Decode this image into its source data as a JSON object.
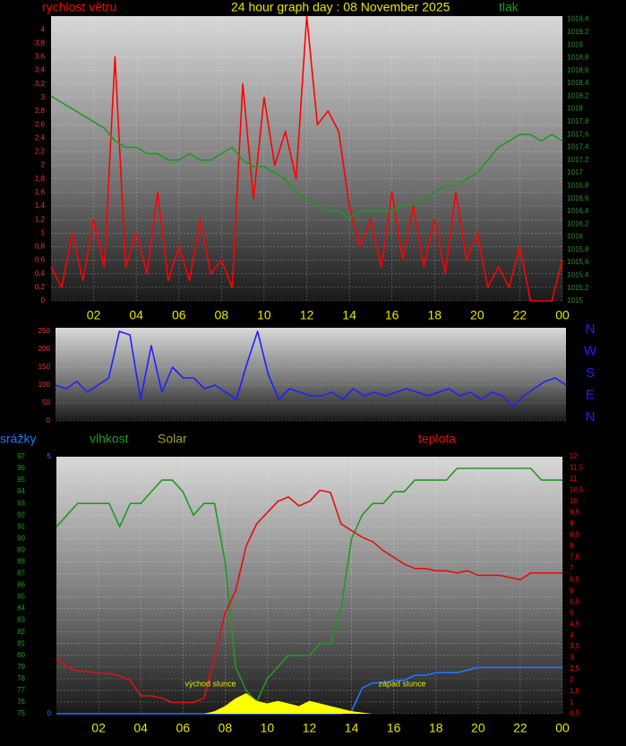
{
  "chart_data": [
    {
      "type": "line",
      "title": "24 hour graph day : 08 November 2025",
      "x": [
        0,
        0.5,
        1,
        1.5,
        2,
        2.5,
        3,
        3.5,
        4,
        4.5,
        5,
        5.5,
        6,
        6.5,
        7,
        7.5,
        8,
        8.5,
        9,
        9.5,
        10,
        10.5,
        11,
        11.5,
        12,
        12.5,
        13,
        13.5,
        14,
        14.5,
        15,
        15.5,
        16,
        16.5,
        17,
        17.5,
        18,
        18.5,
        19,
        19.5,
        20,
        20.5,
        21,
        21.5,
        22,
        22.5,
        23,
        23.5,
        24
      ],
      "xlim": [
        0,
        24
      ],
      "xticks": [
        {
          "value": 2,
          "label": "02"
        },
        {
          "value": 4,
          "label": "04"
        },
        {
          "value": 6,
          "label": "06"
        },
        {
          "value": 8,
          "label": "08"
        },
        10,
        12,
        14,
        16,
        18,
        20,
        22,
        {
          "value": 24,
          "label": "00"
        }
      ],
      "ylim": [
        0,
        4.2
      ],
      "yticks": [
        0,
        {
          "value": 0.2,
          "label": "0,2"
        },
        {
          "value": 0.4,
          "label": "0,4"
        },
        {
          "value": 0.6,
          "label": "0,6"
        },
        {
          "value": 0.8,
          "label": "0,8"
        },
        1,
        {
          "value": 1.2,
          "label": "1,2"
        },
        {
          "value": 1.4,
          "label": "1,4"
        },
        {
          "value": 1.6,
          "label": "1,6"
        },
        {
          "value": 1.8,
          "label": "1,8"
        },
        2,
        {
          "value": 2.2,
          "label": "2,2"
        },
        {
          "value": 2.4,
          "label": "2,4"
        },
        {
          "value": 2.6,
          "label": "2,6"
        },
        {
          "value": 2.8,
          "label": "2,8"
        },
        3,
        {
          "value": 3.2,
          "label": "3,2"
        },
        {
          "value": 3.4,
          "label": "3,4"
        },
        {
          "value": 3.6,
          "label": "3,6"
        },
        {
          "value": 3.8,
          "label": "3,8"
        },
        4
      ],
      "y2lim": [
        1015,
        1019.45
      ],
      "y2ticks": [
        1015,
        {
          "value": 1015.2,
          "label": "1015,2"
        },
        {
          "value": 1015.4,
          "label": "1015,4"
        },
        {
          "value": 1015.6,
          "label": "1015,6"
        },
        {
          "value": 1015.8,
          "label": "1015,8"
        },
        1016,
        {
          "value": 1016.2,
          "label": "1016,2"
        },
        {
          "value": 1016.4,
          "label": "1016,4"
        },
        {
          "value": 1016.6,
          "label": "1016,6"
        },
        {
          "value": 1016.8,
          "label": "1016,8"
        },
        1017,
        {
          "value": 1017.2,
          "label": "1017,2"
        },
        {
          "value": 1017.4,
          "label": "1017,4"
        },
        {
          "value": 1017.6,
          "label": "1017,6"
        },
        {
          "value": 1017.8,
          "label": "1017,8"
        },
        1018,
        {
          "value": 1018.2,
          "label": "1018,2"
        },
        {
          "value": 1018.4,
          "label": "1018,4"
        },
        {
          "value": 1018.6,
          "label": "1018,6"
        },
        {
          "value": 1018.8,
          "label": "1018,8"
        },
        1019,
        {
          "value": 1019.2,
          "label": "1019,2"
        },
        {
          "value": 1019.4,
          "label": "1019,4"
        }
      ],
      "grid": true,
      "series": [
        {
          "name": "rychlost větru",
          "color": "#ff0000",
          "values": [
            0.5,
            0.2,
            1,
            0.3,
            1.2,
            0.5,
            3.6,
            0.5,
            1,
            0.4,
            1.6,
            0.3,
            0.8,
            0.3,
            1.2,
            0.4,
            0.6,
            0.2,
            3.2,
            1.5,
            3,
            2,
            2.5,
            1.8,
            4.2,
            2.6,
            2.8,
            2.5,
            1.4,
            0.8,
            1.2,
            0.5,
            1.6,
            0.6,
            1.4,
            0.5,
            1.2,
            0.4,
            1.6,
            0.6,
            1,
            0.2,
            0.5,
            0.2,
            0.8,
            0,
            0,
            0,
            0.6
          ]
        },
        {
          "name": "tlak",
          "color": "#1f9a1f",
          "axis": "y2",
          "values": [
            1018.2,
            1018.1,
            1018.0,
            1017.9,
            1017.8,
            1017.7,
            1017.5,
            1017.4,
            1017.4,
            1017.3,
            1017.3,
            1017.2,
            1017.2,
            1017.3,
            1017.2,
            1017.2,
            1017.3,
            1017.4,
            1017.2,
            1017.1,
            1017.1,
            1017.0,
            1016.9,
            1016.7,
            1016.6,
            1016.5,
            1016.4,
            1016.4,
            1016.3,
            1016.4,
            1016.4,
            1016.4,
            1016.4,
            1016.5,
            1016.5,
            1016.6,
            1016.7,
            1016.8,
            1016.8,
            1016.9,
            1017.0,
            1017.2,
            1017.4,
            1017.5,
            1017.6,
            1017.6,
            1017.5,
            1017.6,
            1017.5
          ]
        }
      ]
    },
    {
      "type": "line",
      "x": [
        0,
        0.5,
        1,
        1.5,
        2,
        2.5,
        3,
        3.5,
        4,
        4.5,
        5,
        5.5,
        6,
        6.5,
        7,
        7.5,
        8,
        8.5,
        9,
        9.5,
        10,
        10.5,
        11,
        11.5,
        12,
        12.5,
        13,
        13.5,
        14,
        14.5,
        15,
        15.5,
        16,
        16.5,
        17,
        17.5,
        18,
        18.5,
        19,
        19.5,
        20,
        20.5,
        21,
        21.5,
        22,
        22.5,
        23,
        23.5,
        24
      ],
      "xlim": [
        0,
        24
      ],
      "ylim": [
        0,
        260
      ],
      "yticks": [
        0,
        50,
        100,
        150,
        200,
        250
      ],
      "direction_labels": [
        "N",
        "W",
        "S",
        "E",
        "N"
      ],
      "series": [
        {
          "color": "#2020ff",
          "values": [
            100,
            90,
            110,
            80,
            100,
            120,
            250,
            240,
            60,
            210,
            80,
            150,
            120,
            120,
            90,
            100,
            80,
            60,
            160,
            250,
            130,
            60,
            90,
            80,
            70,
            70,
            80,
            60,
            90,
            70,
            80,
            70,
            80,
            90,
            80,
            70,
            80,
            90,
            70,
            80,
            60,
            80,
            70,
            40,
            70,
            90,
            110,
            120,
            100
          ]
        }
      ]
    },
    {
      "type": "line",
      "x": [
        0,
        0.5,
        1,
        1.5,
        2,
        2.5,
        3,
        3.5,
        4,
        4.5,
        5,
        5.5,
        6,
        6.5,
        7,
        7.5,
        8,
        8.5,
        9,
        9.5,
        10,
        10.5,
        11,
        11.5,
        12,
        12.5,
        13,
        13.5,
        14,
        14.5,
        15,
        15.5,
        16,
        16.5,
        17,
        17.5,
        18,
        18.5,
        19,
        19.5,
        20,
        20.5,
        21,
        21.5,
        22,
        22.5,
        23,
        23.5,
        24
      ],
      "xlim": [
        0,
        24
      ],
      "xticks": [
        {
          "value": 2,
          "label": "02"
        },
        {
          "value": 4,
          "label": "04"
        },
        {
          "value": 6,
          "label": "06"
        },
        {
          "value": 8,
          "label": "08"
        },
        10,
        12,
        14,
        16,
        18,
        20,
        22,
        {
          "value": 24,
          "label": "00"
        }
      ],
      "ylim": [
        75,
        97
      ],
      "yticks": [
        75,
        76,
        77,
        78,
        79,
        80,
        81,
        82,
        83,
        84,
        85,
        86,
        87,
        88,
        89,
        90,
        91,
        92,
        93,
        94,
        95,
        96,
        97
      ],
      "y2lim": [
        0,
        5
      ],
      "y2ticks": [
        0,
        5
      ],
      "y3lim": [
        0.5,
        12
      ],
      "y3ticks": [
        {
          "value": 0.5,
          "label": "0,5"
        },
        1,
        {
          "value": 1.5,
          "label": "1,5"
        },
        2,
        {
          "value": 2.5,
          "label": "2,5"
        },
        3,
        {
          "value": 3.5,
          "label": "3,5"
        },
        4,
        {
          "value": 4.5,
          "label": "4,5"
        },
        5,
        {
          "value": 5.5,
          "label": "5,5"
        },
        6,
        {
          "value": 6.5,
          "label": "6,5"
        },
        7,
        {
          "value": 7.5,
          "label": "7,5"
        },
        8,
        {
          "value": 8.5,
          "label": "8,5"
        },
        9,
        {
          "value": 9.5,
          "label": "9,5"
        },
        10,
        {
          "value": 10.5,
          "label": "10,5"
        },
        11,
        {
          "value": 11.5,
          "label": "11,5"
        },
        12
      ],
      "y4lim": [
        0,
        1000
      ],
      "grid": true,
      "annotations": [
        "východ slunce",
        "západ slunce"
      ],
      "series": [
        {
          "name": "srážky",
          "color": "#1e78ff",
          "axis": "y2",
          "values": [
            0,
            0,
            0,
            0,
            0,
            0,
            0,
            0,
            0,
            0,
            0,
            0,
            0,
            0,
            0,
            0,
            0,
            0,
            0,
            0,
            0,
            0,
            0,
            0,
            0,
            0,
            0,
            0,
            0.05,
            0.5,
            0.6,
            0.6,
            0.65,
            0.65,
            0.75,
            0.75,
            0.8,
            0.8,
            0.8,
            0.85,
            0.9,
            0.9,
            0.9,
            0.9,
            0.9,
            0.9,
            0.9,
            0.9,
            0.9
          ]
        },
        {
          "name": "vlhkost",
          "color": "#1f9a1f",
          "values": [
            91,
            92,
            93,
            93,
            93,
            93,
            91,
            93,
            93,
            94,
            95,
            95,
            94,
            92,
            93,
            93,
            88,
            79,
            77,
            76,
            78,
            79,
            80,
            80,
            80,
            81,
            81,
            84,
            90,
            92,
            93,
            93,
            94,
            94,
            95,
            95,
            95,
            95,
            96,
            96,
            96,
            96,
            96,
            96,
            96,
            96,
            95,
            95,
            95
          ]
        },
        {
          "name": "Solar",
          "color": "#ffff00",
          "axis": "y4",
          "area": true,
          "values": [
            0,
            0,
            0,
            0,
            0,
            0,
            0,
            0,
            0,
            0,
            0,
            0,
            0,
            0,
            0,
            10,
            30,
            60,
            80,
            50,
            40,
            50,
            40,
            30,
            50,
            40,
            30,
            20,
            10,
            5,
            0,
            0,
            0,
            0,
            0,
            0,
            0,
            0,
            0,
            0,
            0,
            0,
            0,
            0,
            0,
            0,
            0,
            0,
            0
          ]
        },
        {
          "name": "teplota",
          "color": "#e01010",
          "axis": "y3",
          "values": [
            3,
            2.6,
            2.4,
            2.4,
            2.3,
            2.3,
            2.2,
            2,
            1.3,
            1.3,
            1.2,
            1,
            1,
            1,
            1.2,
            3,
            5,
            6,
            8,
            9,
            9.5,
            10,
            10.2,
            9.8,
            10,
            10.5,
            10.4,
            9,
            8.7,
            8.4,
            8.2,
            7.8,
            7.5,
            7.2,
            7,
            7,
            6.9,
            6.9,
            6.8,
            6.9,
            6.7,
            6.7,
            6.7,
            6.6,
            6.5,
            6.8,
            6.8,
            6.8,
            6.8
          ]
        }
      ]
    }
  ]
}
